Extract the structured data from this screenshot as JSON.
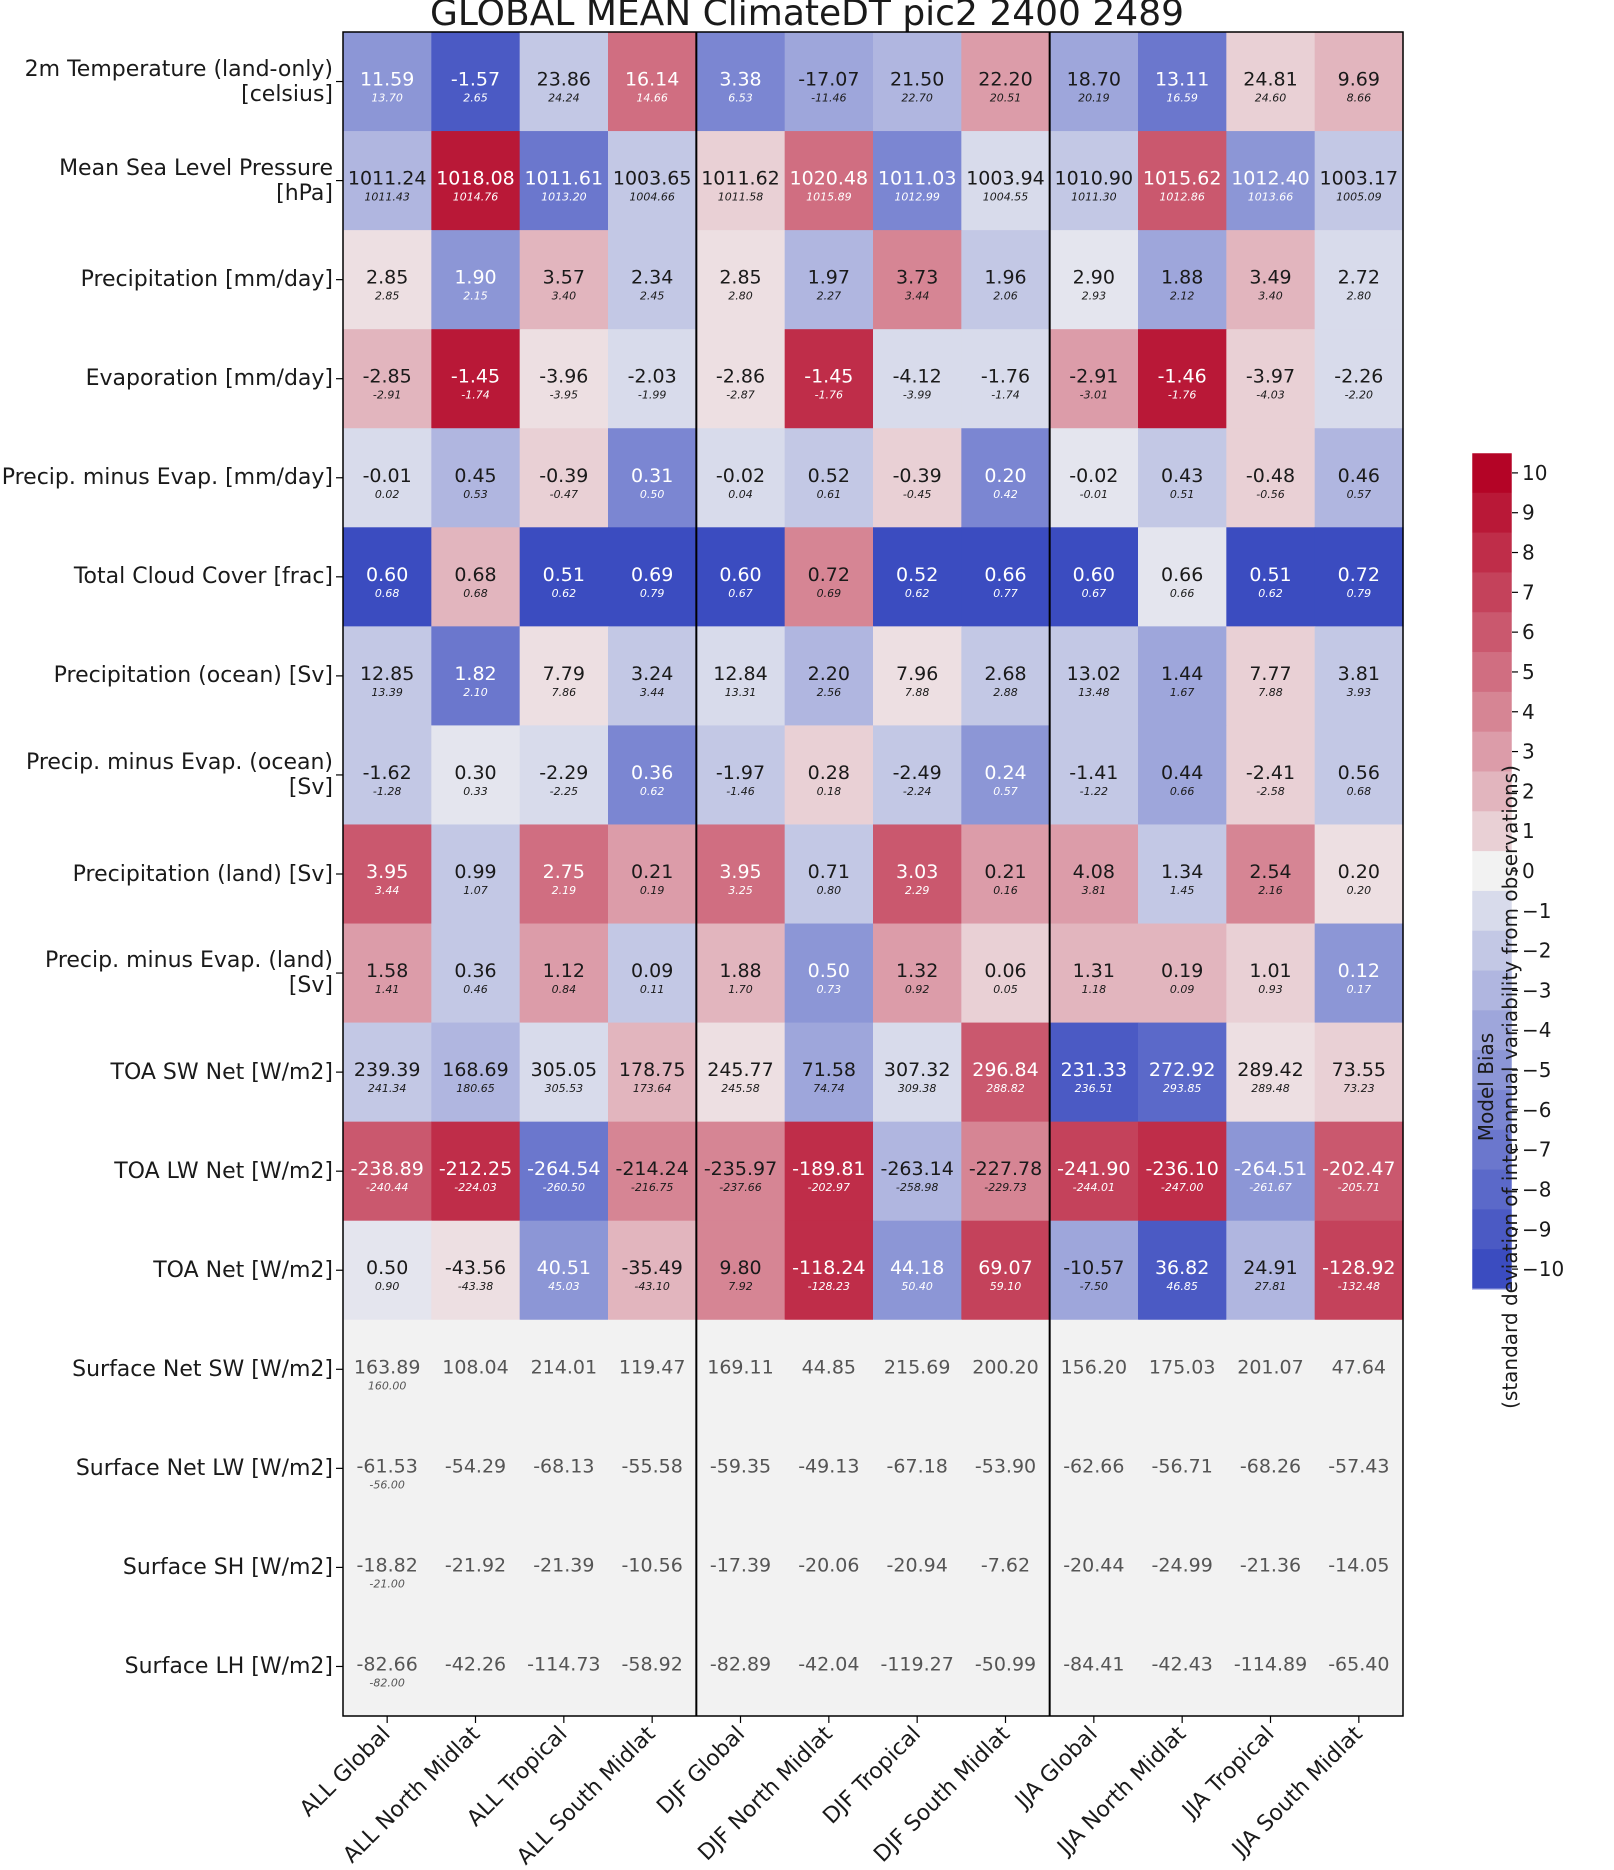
{
  "chart_data": {
    "type": "heatmap",
    "title": "GLOBAL MEAN ClimateDT pic2 2400 2489",
    "columns": [
      "ALL Global",
      "ALL North Midlat",
      "ALL Tropical",
      "ALL South Midlat",
      "DJF Global",
      "DJF North Midlat",
      "DJF Tropical",
      "DJF South Midlat",
      "JJA Global",
      "JJA North Midlat",
      "JJA Tropical",
      "JJA South Midlat"
    ],
    "rows": [
      {
        "label": [
          "2m Temperature (land-only)",
          "[celsius]"
        ],
        "values": [
          "11.59",
          "-1.57",
          "23.86",
          "16.14",
          "3.38",
          "-17.07",
          "21.50",
          "22.20",
          "18.70",
          "13.11",
          "24.81",
          "9.69"
        ],
        "obs": [
          "13.70",
          "2.65",
          "24.24",
          "14.66",
          "6.53",
          "-11.46",
          "22.70",
          "20.51",
          "20.19",
          "16.59",
          "24.60",
          "8.66"
        ],
        "bias": [
          -5,
          -9,
          -2,
          5,
          -6,
          -4,
          -3,
          3,
          -4,
          -7,
          1,
          2
        ]
      },
      {
        "label": [
          "Mean Sea Level Pressure",
          "[hPa]"
        ],
        "values": [
          "1011.24",
          "1018.08",
          "1011.61",
          "1003.65",
          "1011.62",
          "1020.48",
          "1011.03",
          "1003.94",
          "1010.90",
          "1015.62",
          "1012.40",
          "1003.17"
        ],
        "obs": [
          "1011.43",
          "1014.76",
          "1013.20",
          "1004.66",
          "1011.58",
          "1015.89",
          "1012.99",
          "1004.55",
          "1011.30",
          "1012.86",
          "1013.66",
          "1005.09"
        ],
        "bias": [
          -3,
          9,
          -7,
          -2,
          1,
          5,
          -6,
          -1,
          -2,
          6,
          -5,
          -2
        ]
      },
      {
        "label": [
          "Precipitation [mm/day]"
        ],
        "values": [
          "2.85",
          "1.90",
          "3.57",
          "2.34",
          "2.85",
          "1.97",
          "3.73",
          "1.96",
          "2.90",
          "1.88",
          "3.49",
          "2.72"
        ],
        "obs": [
          "2.85",
          "2.15",
          "3.40",
          "2.45",
          "2.80",
          "2.27",
          "3.44",
          "2.06",
          "2.93",
          "2.12",
          "3.40",
          "2.80"
        ],
        "bias": [
          0.5,
          -5,
          2,
          -2,
          0.5,
          -3,
          4,
          -2,
          -0.5,
          -4,
          2,
          -1
        ]
      },
      {
        "label": [
          "Evaporation [mm/day]"
        ],
        "values": [
          "-2.85",
          "-1.45",
          "-3.96",
          "-2.03",
          "-2.86",
          "-1.45",
          "-4.12",
          "-1.76",
          "-2.91",
          "-1.46",
          "-3.97",
          "-2.26"
        ],
        "obs": [
          "-2.91",
          "-1.74",
          "-3.95",
          "-1.99",
          "-2.87",
          "-1.76",
          "-3.99",
          "-1.74",
          "-3.01",
          "-1.76",
          "-4.03",
          "-2.20"
        ],
        "bias": [
          2,
          9,
          0.5,
          -1,
          0.5,
          8,
          -1,
          -1,
          3,
          9,
          1,
          -1
        ]
      },
      {
        "label": [
          "Precip. minus Evap. [mm/day]"
        ],
        "values": [
          "-0.01",
          "0.45",
          "-0.39",
          "0.31",
          "-0.02",
          "0.52",
          "-0.39",
          "0.20",
          "-0.02",
          "0.43",
          "-0.48",
          "0.46"
        ],
        "obs": [
          "0.02",
          "0.53",
          "-0.47",
          "0.50",
          "0.04",
          "0.61",
          "-0.45",
          "0.42",
          "-0.01",
          "0.51",
          "-0.56",
          "0.57"
        ],
        "bias": [
          -1,
          -3,
          1,
          -6,
          -1,
          -2,
          1,
          -6,
          -0.5,
          -2,
          1,
          -3
        ]
      },
      {
        "label": [
          "Total Cloud Cover [frac]"
        ],
        "values": [
          "0.60",
          "0.68",
          "0.51",
          "0.69",
          "0.60",
          "0.72",
          "0.52",
          "0.66",
          "0.60",
          "0.66",
          "0.51",
          "0.72"
        ],
        "obs": [
          "0.68",
          "0.68",
          "0.62",
          "0.79",
          "0.67",
          "0.69",
          "0.62",
          "0.77",
          "0.67",
          "0.66",
          "0.62",
          "0.79"
        ],
        "bias": [
          -10,
          2,
          -10,
          -10,
          -10,
          4,
          -10,
          -10,
          -10,
          -0.5,
          -10,
          -10
        ]
      },
      {
        "label": [
          "Precipitation (ocean) [Sv]"
        ],
        "values": [
          "12.85",
          "1.82",
          "7.79",
          "3.24",
          "12.84",
          "2.20",
          "7.96",
          "2.68",
          "13.02",
          "1.44",
          "7.77",
          "3.81"
        ],
        "obs": [
          "13.39",
          "2.10",
          "7.86",
          "3.44",
          "13.31",
          "2.56",
          "7.88",
          "2.88",
          "13.48",
          "1.67",
          "7.88",
          "3.93"
        ],
        "bias": [
          -2,
          -7,
          0.5,
          -2,
          -1,
          -3,
          0.5,
          -2,
          -2,
          -4,
          1,
          -2
        ]
      },
      {
        "label": [
          "Precip. minus Evap. (ocean)",
          "[Sv]"
        ],
        "values": [
          "-1.62",
          "0.30",
          "-2.29",
          "0.36",
          "-1.97",
          "0.28",
          "-2.49",
          "0.24",
          "-1.41",
          "0.44",
          "-2.41",
          "0.56"
        ],
        "obs": [
          "-1.28",
          "0.33",
          "-2.25",
          "0.62",
          "-1.46",
          "0.18",
          "-2.24",
          "0.57",
          "-1.22",
          "0.66",
          "-2.58",
          "0.68"
        ],
        "bias": [
          -2,
          -0.5,
          -1,
          -6,
          -2,
          1,
          -2,
          -5,
          -2,
          -4,
          1,
          -2
        ]
      },
      {
        "label": [
          "Precipitation (land) [Sv]"
        ],
        "values": [
          "3.95",
          "0.99",
          "2.75",
          "0.21",
          "3.95",
          "0.71",
          "3.03",
          "0.21",
          "4.08",
          "1.34",
          "2.54",
          "0.20"
        ],
        "obs": [
          "3.44",
          "1.07",
          "2.19",
          "0.19",
          "3.25",
          "0.80",
          "2.29",
          "0.16",
          "3.81",
          "1.45",
          "2.16",
          "0.20"
        ],
        "bias": [
          6,
          -2,
          5,
          3,
          5,
          -2,
          6,
          3,
          3,
          -2,
          4,
          0.5
        ]
      },
      {
        "label": [
          "Precip. minus Evap. (land)",
          "[Sv]"
        ],
        "values": [
          "1.58",
          "0.36",
          "1.12",
          "0.09",
          "1.88",
          "0.50",
          "1.32",
          "0.06",
          "1.31",
          "0.19",
          "1.01",
          "0.12"
        ],
        "obs": [
          "1.41",
          "0.46",
          "0.84",
          "0.11",
          "1.70",
          "0.73",
          "0.92",
          "0.05",
          "1.18",
          "0.09",
          "0.93",
          "0.17"
        ],
        "bias": [
          3,
          -2,
          3,
          -2,
          2,
          -5,
          3,
          1,
          2,
          2,
          1,
          -5
        ]
      },
      {
        "label": [
          "TOA SW Net [W/m2]"
        ],
        "values": [
          "239.39",
          "168.69",
          "305.05",
          "178.75",
          "245.77",
          "71.58",
          "307.32",
          "296.84",
          "231.33",
          "272.92",
          "289.42",
          "73.55"
        ],
        "obs": [
          "241.34",
          "180.65",
          "305.53",
          "173.64",
          "245.58",
          "74.74",
          "309.38",
          "288.82",
          "236.51",
          "293.85",
          "289.48",
          "73.23"
        ],
        "bias": [
          -2,
          -3,
          -1,
          2,
          0.5,
          -4,
          -1,
          6,
          -9,
          -8,
          0.5,
          1
        ]
      },
      {
        "label": [
          "TOA LW Net [W/m2]"
        ],
        "values": [
          "-238.89",
          "-212.25",
          "-264.54",
          "-214.24",
          "-235.97",
          "-189.81",
          "-263.14",
          "-227.78",
          "-241.90",
          "-236.10",
          "-264.51",
          "-202.47"
        ],
        "obs": [
          "-240.44",
          "-224.03",
          "-260.50",
          "-216.75",
          "-237.66",
          "-202.97",
          "-258.98",
          "-229.73",
          "-244.01",
          "-247.00",
          "-261.67",
          "-205.71"
        ],
        "bias": [
          6,
          8,
          -7,
          4,
          4,
          8,
          -3,
          4,
          7,
          8,
          -5,
          6
        ]
      },
      {
        "label": [
          "TOA Net [W/m2]"
        ],
        "values": [
          "0.50",
          "-43.56",
          "40.51",
          "-35.49",
          "9.80",
          "-118.24",
          "44.18",
          "69.07",
          "-10.57",
          "36.82",
          "24.91",
          "-128.92"
        ],
        "obs": [
          "0.90",
          "-43.38",
          "45.03",
          "-43.10",
          "7.92",
          "-128.23",
          "50.40",
          "59.10",
          "-7.50",
          "46.85",
          "27.81",
          "-132.48"
        ],
        "bias": [
          -0.5,
          0.5,
          -5,
          2,
          4,
          8,
          -5,
          7,
          -4,
          -9,
          -3,
          7
        ]
      },
      {
        "label": [
          "Surface Net SW [W/m2]"
        ],
        "values": [
          "163.89",
          "108.04",
          "214.01",
          "119.47",
          "169.11",
          "44.85",
          "215.69",
          "200.20",
          "156.20",
          "175.03",
          "201.07",
          "47.64"
        ],
        "obs": [
          "160.00",
          "",
          "",
          "",
          "",
          "",
          "",
          "",
          "",
          "",
          "",
          ""
        ],
        "bias": [
          null,
          null,
          null,
          null,
          null,
          null,
          null,
          null,
          null,
          null,
          null,
          null
        ]
      },
      {
        "label": [
          "Surface Net LW [W/m2]"
        ],
        "values": [
          "-61.53",
          "-54.29",
          "-68.13",
          "-55.58",
          "-59.35",
          "-49.13",
          "-67.18",
          "-53.90",
          "-62.66",
          "-56.71",
          "-68.26",
          "-57.43"
        ],
        "obs": [
          "-56.00",
          "",
          "",
          "",
          "",
          "",
          "",
          "",
          "",
          "",
          "",
          ""
        ],
        "bias": [
          null,
          null,
          null,
          null,
          null,
          null,
          null,
          null,
          null,
          null,
          null,
          null
        ]
      },
      {
        "label": [
          "Surface SH [W/m2]"
        ],
        "values": [
          "-18.82",
          "-21.92",
          "-21.39",
          "-10.56",
          "-17.39",
          "-20.06",
          "-20.94",
          "-7.62",
          "-20.44",
          "-24.99",
          "-21.36",
          "-14.05"
        ],
        "obs": [
          "-21.00",
          "",
          "",
          "",
          "",
          "",
          "",
          "",
          "",
          "",
          "",
          ""
        ],
        "bias": [
          null,
          null,
          null,
          null,
          null,
          null,
          null,
          null,
          null,
          null,
          null,
          null
        ]
      },
      {
        "label": [
          "Surface LH [W/m2]"
        ],
        "values": [
          "-82.66",
          "-42.26",
          "-114.73",
          "-58.92",
          "-82.89",
          "-42.04",
          "-119.27",
          "-50.99",
          "-84.41",
          "-42.43",
          "-114.89",
          "-65.40"
        ],
        "obs": [
          "-82.00",
          "",
          "",
          "",
          "",
          "",
          "",
          "",
          "",
          "",
          "",
          ""
        ],
        "bias": [
          null,
          null,
          null,
          null,
          null,
          null,
          null,
          null,
          null,
          null,
          null,
          null
        ]
      }
    ],
    "colorbar": {
      "ticks": [
        "10",
        "9",
        "8",
        "7",
        "6",
        "5",
        "4",
        "3",
        "2",
        "1",
        "0",
        "−1",
        "−2",
        "−3",
        "−4",
        "−5",
        "−6",
        "−7",
        "−8",
        "−9",
        "−10"
      ],
      "range": [
        -10.5,
        10.5
      ],
      "label_line1": "Model Bias",
      "label_line2": "(standard deviation of interannual variability from observations)"
    },
    "colors": {
      "positive": "#b40426",
      "negative": "#3b4cc0",
      "neutral": "#f2f2f2",
      "missing": "#f2f2f2"
    }
  }
}
